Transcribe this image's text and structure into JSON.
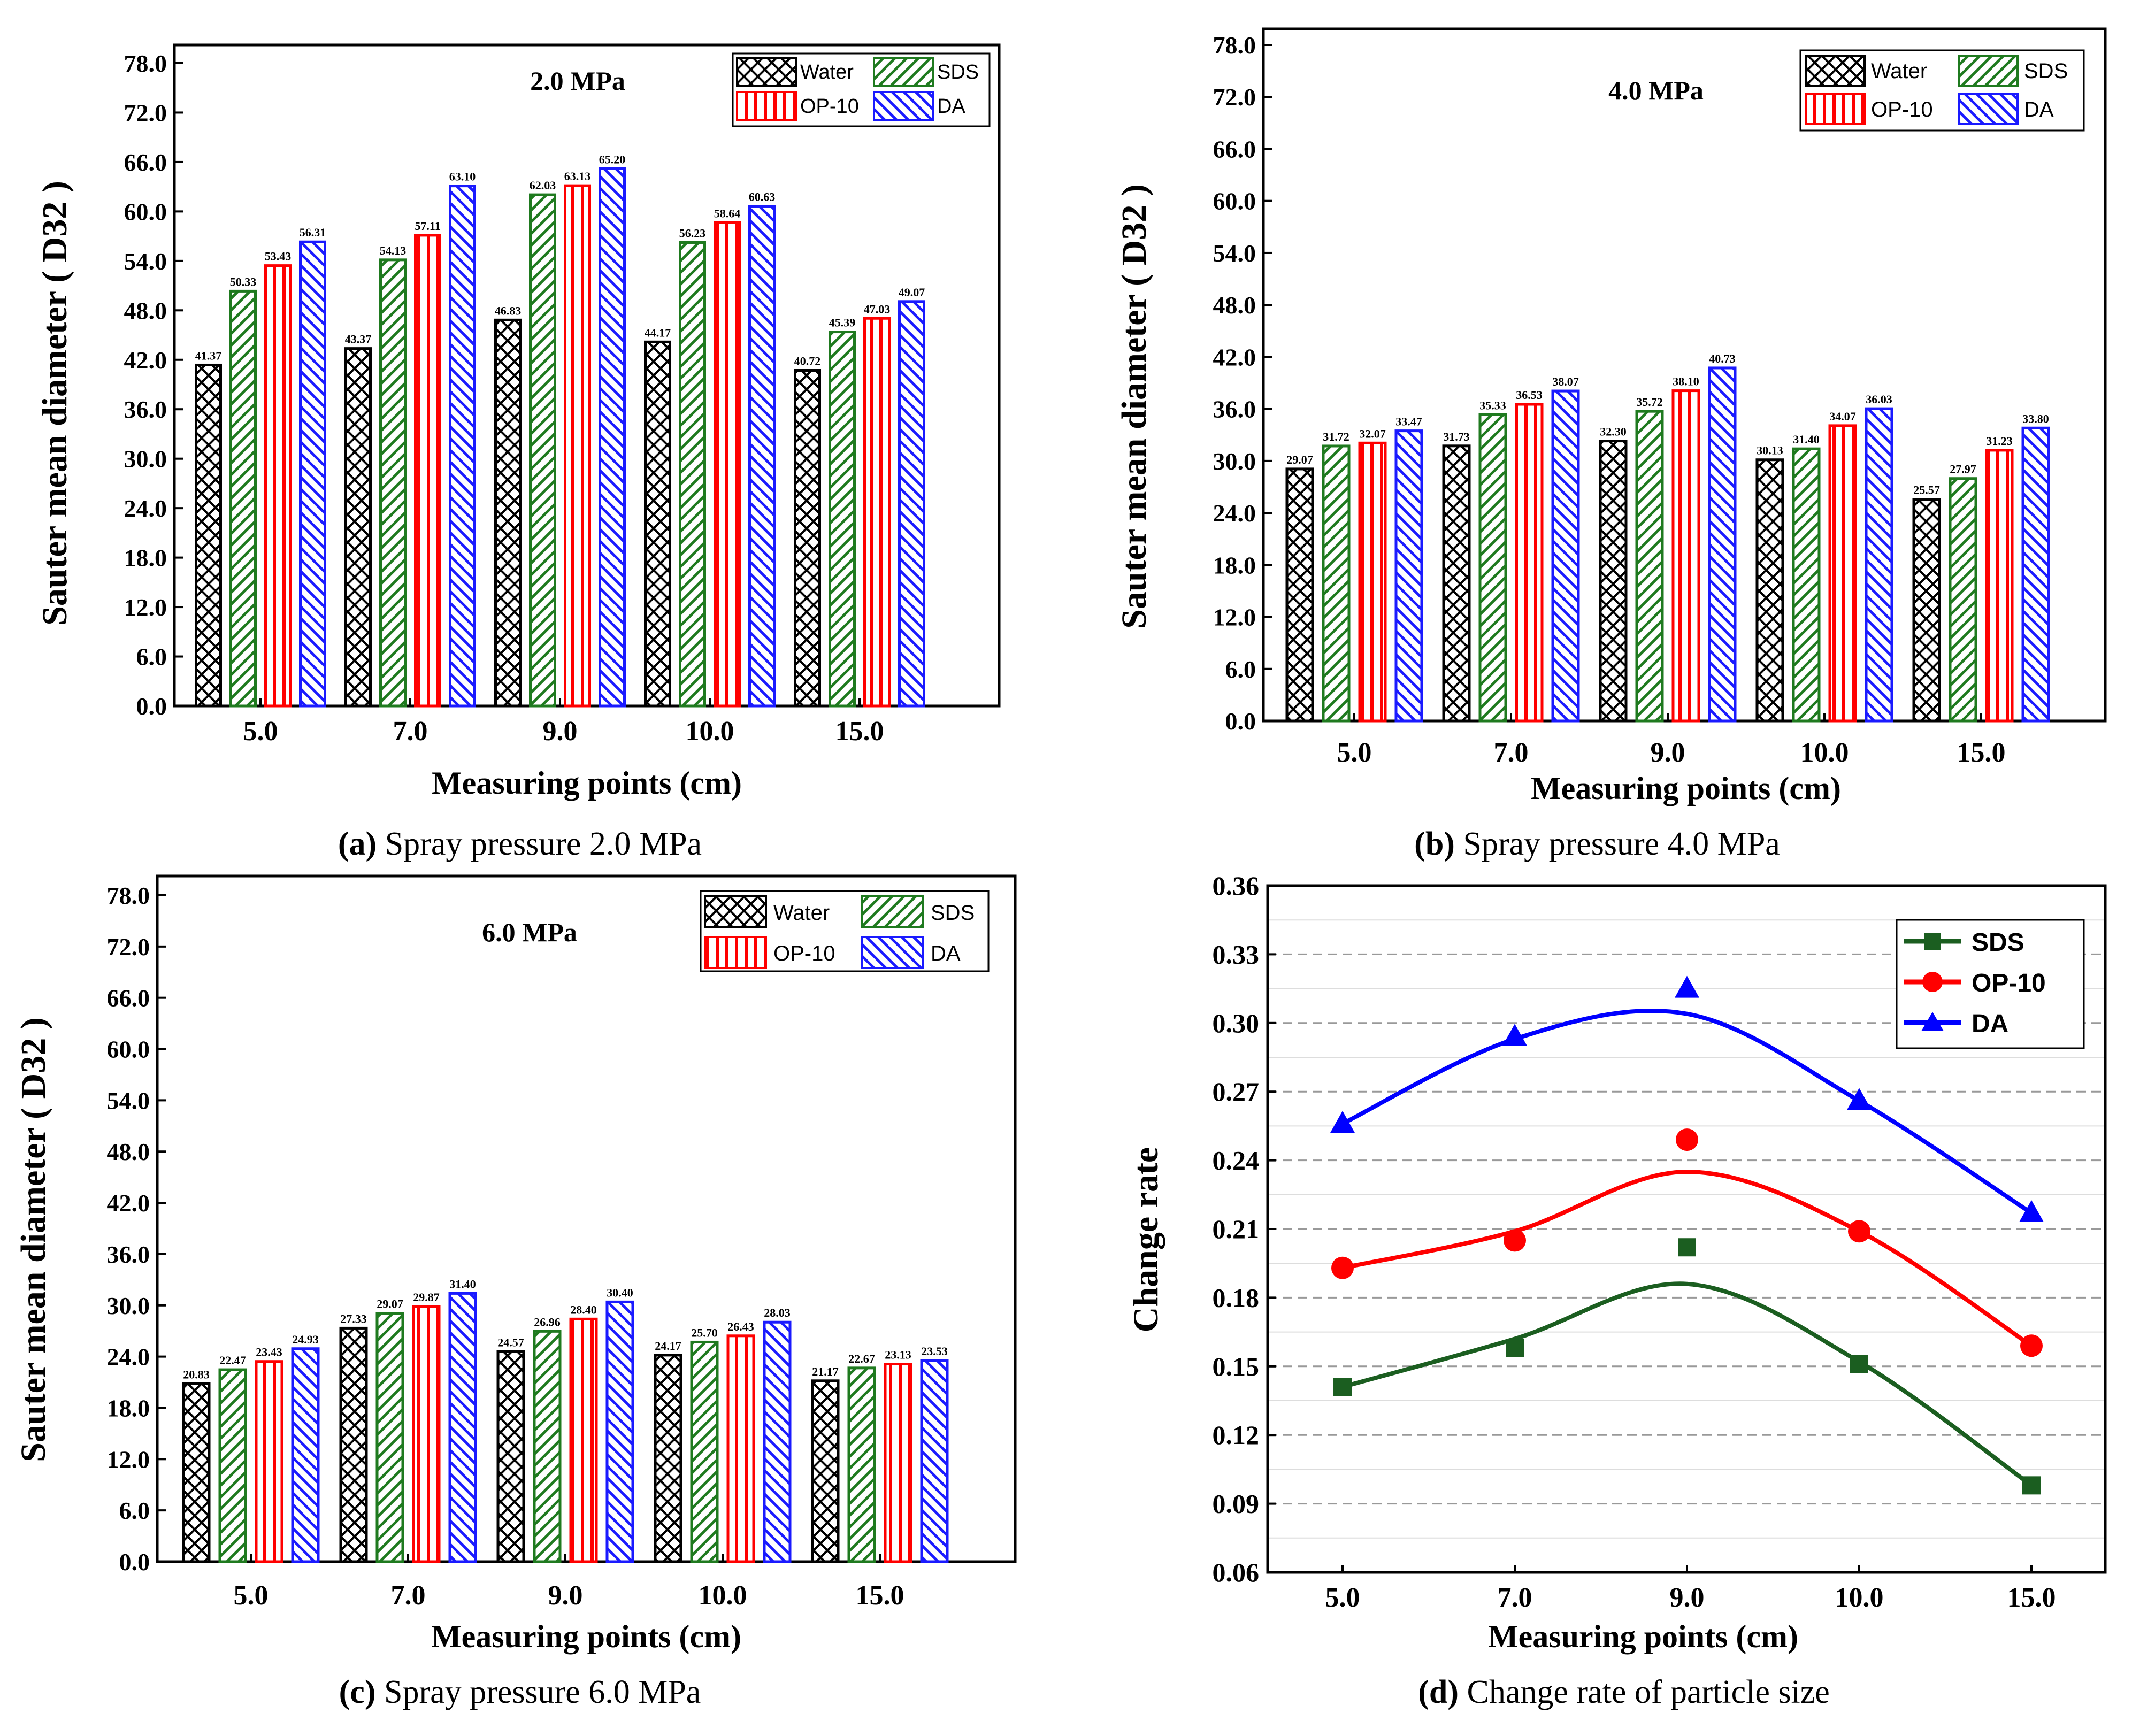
{
  "legend": {
    "bar_series": [
      "Water",
      "SDS",
      "OP-10",
      "DA"
    ],
    "line_series": [
      "SDS",
      "OP-10",
      "DA"
    ]
  },
  "colors": {
    "water": "#000000",
    "sds": "#1f7a1f",
    "op10": "#ff0000",
    "da": "#1a1aff",
    "sds_line": "#1b5e20",
    "da_line": "#0000ff"
  },
  "chart_data": [
    {
      "id": "a",
      "type": "bar",
      "panel_label": "(a)",
      "caption": "Spray pressure 2.0 MPa",
      "annotation": "2.0 MPa",
      "xlabel": "Measuring points (cm)",
      "ylabel": "Sauter mean diameter ( D32 )",
      "categories": [
        "5.0",
        "7.0",
        "9.0",
        "10.0",
        "15.0"
      ],
      "ylim": [
        0,
        78
      ],
      "yticks": [
        "0.0",
        "6.0",
        "12.0",
        "18.0",
        "24.0",
        "30.0",
        "36.0",
        "42.0",
        "48.0",
        "54.0",
        "60.0",
        "66.0",
        "72.0",
        "78.0"
      ],
      "series": [
        {
          "name": "Water",
          "values": [
            41.37,
            43.37,
            46.83,
            44.17,
            40.72
          ],
          "labels": [
            "41.37",
            "43.37",
            "46.83",
            "44.17",
            "40.72"
          ]
        },
        {
          "name": "SDS",
          "values": [
            50.33,
            54.13,
            62.03,
            56.23,
            45.39
          ],
          "labels": [
            "50.33",
            "54.13",
            "62.03",
            "56.23",
            "45.39"
          ]
        },
        {
          "name": "OP-10",
          "values": [
            53.43,
            57.11,
            63.13,
            58.64,
            47.03
          ],
          "labels": [
            "53.43",
            "57.11",
            "63.13",
            "58.64",
            "47.03"
          ]
        },
        {
          "name": "DA",
          "values": [
            56.31,
            63.1,
            65.2,
            60.63,
            49.07
          ],
          "labels": [
            "56.31",
            "63.10",
            "65.20",
            "60.63",
            "49.07"
          ]
        }
      ]
    },
    {
      "id": "b",
      "type": "bar",
      "panel_label": "(b)",
      "caption": "Spray pressure 4.0 MPa",
      "annotation": "4.0 MPa",
      "xlabel": "Measuring points (cm)",
      "ylabel": "Sauter mean diameter ( D32 )",
      "categories": [
        "5.0",
        "7.0",
        "9.0",
        "10.0",
        "15.0"
      ],
      "ylim": [
        0,
        78
      ],
      "yticks": [
        "0.0",
        "6.0",
        "12.0",
        "18.0",
        "24.0",
        "30.0",
        "36.0",
        "42.0",
        "48.0",
        "54.0",
        "60.0",
        "66.0",
        "72.0",
        "78.0"
      ],
      "series": [
        {
          "name": "Water",
          "values": [
            29.07,
            31.73,
            32.3,
            30.13,
            25.57
          ],
          "labels": [
            "29.07",
            "31.73",
            "32.30",
            "30.13",
            "25.57"
          ]
        },
        {
          "name": "SDS",
          "values": [
            31.72,
            35.33,
            35.72,
            31.4,
            27.97
          ],
          "labels": [
            "31.72",
            "35.33",
            "35.72",
            "31.40",
            "27.97"
          ]
        },
        {
          "name": "OP-10",
          "values": [
            32.07,
            36.53,
            38.1,
            34.07,
            31.23
          ],
          "labels": [
            "32.07",
            "36.53",
            "38.10",
            "34.07",
            "31.23"
          ]
        },
        {
          "name": "DA",
          "values": [
            33.47,
            38.07,
            40.73,
            36.03,
            33.8
          ],
          "labels": [
            "33.47",
            "38.07",
            "40.73",
            "36.03",
            "33.80"
          ]
        }
      ]
    },
    {
      "id": "c",
      "type": "bar",
      "panel_label": "(c)",
      "caption": "Spray pressure 6.0 MPa",
      "annotation": "6.0 MPa",
      "xlabel": "Measuring points (cm)",
      "ylabel": "Sauter mean diameter ( D32 )",
      "categories": [
        "5.0",
        "7.0",
        "9.0",
        "10.0",
        "15.0"
      ],
      "ylim": [
        0,
        78
      ],
      "yticks": [
        "0.0",
        "6.0",
        "12.0",
        "18.0",
        "24.0",
        "30.0",
        "36.0",
        "42.0",
        "48.0",
        "54.0",
        "60.0",
        "66.0",
        "72.0",
        "78.0"
      ],
      "series": [
        {
          "name": "Water",
          "values": [
            20.83,
            27.33,
            24.57,
            24.17,
            21.17
          ],
          "labels": [
            "20.83",
            "27.33",
            "24.57",
            "24.17",
            "21.17"
          ]
        },
        {
          "name": "SDS",
          "values": [
            22.47,
            29.07,
            26.96,
            25.7,
            22.67
          ],
          "labels": [
            "22.47",
            "29.07",
            "26.96",
            "25.70",
            "22.67"
          ]
        },
        {
          "name": "OP-10",
          "values": [
            23.43,
            29.87,
            28.4,
            26.43,
            23.13
          ],
          "labels": [
            "23.43",
            "29.87",
            "28.40",
            "26.43",
            "23.13"
          ]
        },
        {
          "name": "DA",
          "values": [
            24.93,
            31.4,
            30.4,
            28.03,
            23.53
          ],
          "labels": [
            "24.93",
            "31.40",
            "30.40",
            "28.03",
            "23.53"
          ]
        }
      ]
    },
    {
      "id": "d",
      "type": "line",
      "panel_label": "(d)",
      "caption": "Change rate of particle size",
      "xlabel": "Measuring points (cm)",
      "ylabel": "Change rate",
      "categories": [
        "5.0",
        "7.0",
        "9.0",
        "10.0",
        "15.0"
      ],
      "ylim": [
        0.06,
        0.36
      ],
      "yticks": [
        "0.06",
        "0.09",
        "0.12",
        "0.15",
        "0.18",
        "0.21",
        "0.24",
        "0.27",
        "0.30",
        "0.33",
        "0.36"
      ],
      "grid": true,
      "series": [
        {
          "name": "SDS",
          "marker": "square",
          "values": [
            0.141,
            0.158,
            0.202,
            0.151,
            0.098
          ],
          "fit": [
            0.141,
            0.162,
            0.186,
            0.152,
            0.098
          ]
        },
        {
          "name": "OP-10",
          "marker": "circle",
          "values": [
            0.193,
            0.205,
            0.249,
            0.209,
            0.159
          ],
          "fit": [
            0.193,
            0.209,
            0.235,
            0.209,
            0.159
          ]
        },
        {
          "name": "DA",
          "marker": "triangle",
          "values": [
            0.256,
            0.294,
            0.315,
            0.266,
            0.217
          ],
          "fit": [
            0.256,
            0.293,
            0.304,
            0.266,
            0.217
          ]
        }
      ]
    }
  ]
}
